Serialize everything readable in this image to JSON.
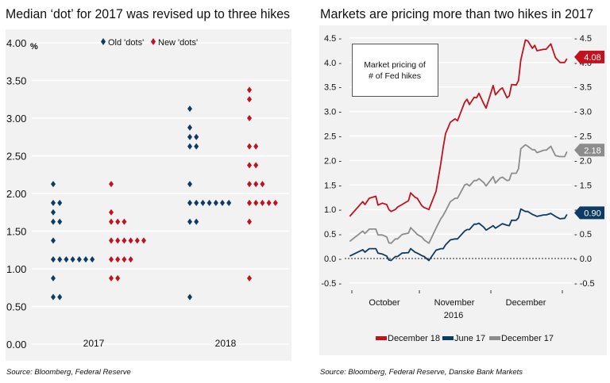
{
  "colors": {
    "old": "#0d3b62",
    "new": "#c1121f",
    "dec18": "#c1121f",
    "jun17": "#0d3b62",
    "dec17": "#8c8c8c",
    "panel": "#f2f2f2",
    "grid": "#ffffff"
  },
  "chart_data": [
    {
      "type": "scatter",
      "title": "Median ‘dot’ for 2017 was revised up to three hikes",
      "ylabel": "%",
      "source": "Source: Bloomberg, Federal Reserve",
      "categories": [
        "2017",
        "2018"
      ],
      "ylim": [
        0,
        4
      ],
      "yticks": [
        "0.00",
        "0.50",
        "1.00",
        "1.50",
        "2.00",
        "2.50",
        "3.00",
        "3.50",
        "4.00"
      ],
      "grid": true,
      "legend": "top-center",
      "series": [
        {
          "name": "Old 'dots'",
          "marker": "diamond",
          "dots": {
            "2017": [
              {
                "value": 2.125,
                "count": 1
              },
              {
                "value": 1.875,
                "count": 2
              },
              {
                "value": 1.75,
                "count": 1
              },
              {
                "value": 1.625,
                "count": 2
              },
              {
                "value": 1.375,
                "count": 1
              },
              {
                "value": 1.125,
                "count": 7
              },
              {
                "value": 0.875,
                "count": 1
              },
              {
                "value": 0.625,
                "count": 2
              }
            ],
            "2018": [
              {
                "value": 3.125,
                "count": 1
              },
              {
                "value": 2.875,
                "count": 1
              },
              {
                "value": 2.75,
                "count": 2
              },
              {
                "value": 2.625,
                "count": 2
              },
              {
                "value": 2.125,
                "count": 1
              },
              {
                "value": 1.875,
                "count": 7
              },
              {
                "value": 1.625,
                "count": 2
              },
              {
                "value": 0.625,
                "count": 1
              }
            ]
          }
        },
        {
          "name": "New 'dots'",
          "marker": "diamond",
          "dots": {
            "2017": [
              {
                "value": 2.125,
                "count": 1
              },
              {
                "value": 1.75,
                "count": 1
              },
              {
                "value": 1.625,
                "count": 3
              },
              {
                "value": 1.375,
                "count": 6
              },
              {
                "value": 1.125,
                "count": 4
              },
              {
                "value": 0.875,
                "count": 2
              }
            ],
            "2018": [
              {
                "value": 3.375,
                "count": 1
              },
              {
                "value": 3.25,
                "count": 1
              },
              {
                "value": 3.0,
                "count": 1
              },
              {
                "value": 2.625,
                "count": 2
              },
              {
                "value": 2.375,
                "count": 2
              },
              {
                "value": 2.125,
                "count": 3
              },
              {
                "value": 1.875,
                "count": 5
              },
              {
                "value": 1.625,
                "count": 1
              },
              {
                "value": 0.875,
                "count": 1
              }
            ]
          }
        }
      ]
    },
    {
      "type": "line",
      "title": "Markets are pricing more than two hikes in 2017",
      "annotation": [
        "Market pricing of",
        "# of Fed hikes"
      ],
      "source": "Source: Bloomberg, Federal Reserve, Danske Bank Markets",
      "xticks": [
        "October",
        "November",
        "December"
      ],
      "xlabel": "2016",
      "ylim": [
        -0.5,
        4.5
      ],
      "yticks": [
        "-0.5",
        "0.0",
        "0.5",
        "1.0",
        "1.5",
        "2.0",
        "2.5",
        "3.0",
        "3.5",
        "4.0",
        "4.5"
      ],
      "grid": true,
      "legend": "bottom",
      "x": [
        "2016-09-30",
        "2016-10-06",
        "2016-10-07",
        "2016-10-09",
        "2016-10-12",
        "2016-10-13",
        "2016-10-15",
        "2016-10-17",
        "2016-10-18",
        "2016-10-19",
        "2016-10-21",
        "2016-10-22",
        "2016-10-24",
        "2016-10-27",
        "2016-10-28",
        "2016-10-30",
        "2016-10-31",
        "2016-11-02",
        "2016-11-03",
        "2016-11-05",
        "2016-11-08",
        "2016-11-10",
        "2016-11-11",
        "2016-11-12",
        "2016-11-14",
        "2016-11-16",
        "2016-11-17",
        "2016-11-20",
        "2016-11-21",
        "2016-11-22",
        "2016-11-24",
        "2016-11-25",
        "2016-11-26",
        "2016-11-28",
        "2016-11-29",
        "2016-12-02",
        "2016-12-03",
        "2016-12-05",
        "2016-12-06",
        "2016-12-08",
        "2016-12-09",
        "2016-12-10",
        "2016-12-12",
        "2016-12-13",
        "2016-12-14",
        "2016-12-16",
        "2016-12-17",
        "2016-12-19",
        "2016-12-20",
        "2016-12-21",
        "2016-12-24",
        "2016-12-25",
        "2016-12-27",
        "2016-12-29",
        "2016-12-31",
        "2017-01-02",
        "2017-01-03"
      ],
      "series": [
        {
          "name": "December 18",
          "end_label": "4.08",
          "values": [
            0.86,
            1.16,
            1.1,
            1.23,
            1.27,
            1.09,
            1.13,
            1.1,
            1.0,
            0.96,
            1.0,
            1.05,
            1.1,
            1.18,
            1.34,
            1.25,
            1.23,
            1.08,
            1.04,
            1.0,
            1.37,
            1.94,
            2.27,
            2.55,
            2.78,
            2.85,
            2.81,
            3.19,
            3.25,
            3.14,
            3.29,
            3.28,
            3.37,
            3.16,
            3.07,
            3.53,
            3.34,
            3.45,
            3.48,
            3.28,
            3.32,
            3.55,
            3.54,
            3.63,
            4.05,
            4.46,
            4.44,
            4.29,
            4.35,
            4.24,
            4.27,
            4.27,
            4.38,
            4.1,
            4.0,
            4.0,
            4.08
          ]
        },
        {
          "name": "June 17",
          "end_label": "0.90",
          "values": [
            0.05,
            0.18,
            0.13,
            0.2,
            0.2,
            0.11,
            0.09,
            0.05,
            -0.03,
            -0.04,
            0.04,
            0.04,
            0.11,
            0.12,
            0.2,
            0.13,
            0.11,
            0.06,
            0.04,
            -0.04,
            0.17,
            0.2,
            0.2,
            0.28,
            0.38,
            0.4,
            0.4,
            0.56,
            0.59,
            0.59,
            0.7,
            0.7,
            0.72,
            0.64,
            0.58,
            0.67,
            0.62,
            0.68,
            0.71,
            0.68,
            0.67,
            0.78,
            0.78,
            0.83,
            1.01,
            0.96,
            0.96,
            0.9,
            0.88,
            0.86,
            0.89,
            0.89,
            0.92,
            0.86,
            0.81,
            0.82,
            0.9
          ]
        },
        {
          "name": "December 17",
          "end_label": "2.18",
          "values": [
            0.35,
            0.56,
            0.51,
            0.6,
            0.6,
            0.48,
            0.48,
            0.44,
            0.32,
            0.31,
            0.4,
            0.4,
            0.49,
            0.52,
            0.63,
            0.54,
            0.49,
            0.44,
            0.38,
            0.31,
            0.62,
            0.81,
            0.88,
            0.97,
            1.16,
            1.23,
            1.23,
            1.5,
            1.52,
            1.48,
            1.59,
            1.59,
            1.63,
            1.55,
            1.48,
            1.67,
            1.54,
            1.64,
            1.66,
            1.59,
            1.6,
            1.74,
            1.74,
            1.83,
            2.24,
            2.32,
            2.29,
            2.22,
            2.22,
            2.16,
            2.21,
            2.21,
            2.29,
            2.1,
            2.08,
            2.08,
            2.18
          ]
        }
      ]
    }
  ]
}
